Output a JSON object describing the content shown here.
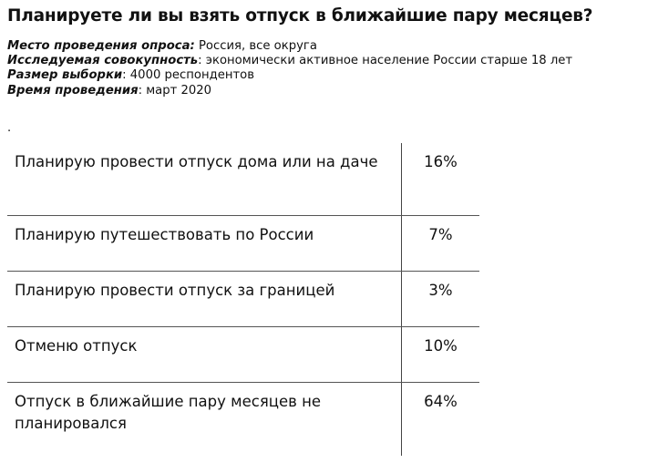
{
  "title": "Планируете ли вы взять отпуск в ближайшие пару месяцев?",
  "meta": [
    {
      "label": "Место проведения опроса:",
      "value": " Россия, все округа"
    },
    {
      "label": "Исследуемая совокупность",
      "value": ": экономически активное население России старше 18 лет"
    },
    {
      "label": "Размер выборки",
      "value": ": 4000 респондентов"
    },
    {
      "label": "Время проведения",
      "value": ": март 2020"
    }
  ],
  "dot": ".",
  "rows": [
    {
      "label": "Планирую провести отпуск дома или на даче",
      "value": "16%"
    },
    {
      "label": "Планирую путешествовать по России",
      "value": "7%"
    },
    {
      "label": "Планирую провести отпуск за границей",
      "value": "3%"
    },
    {
      "label": "Отменю отпуск",
      "value": "10%"
    },
    {
      "label": "Отпуск в ближайшие пару месяцев не планировался",
      "value": "64%"
    }
  ]
}
